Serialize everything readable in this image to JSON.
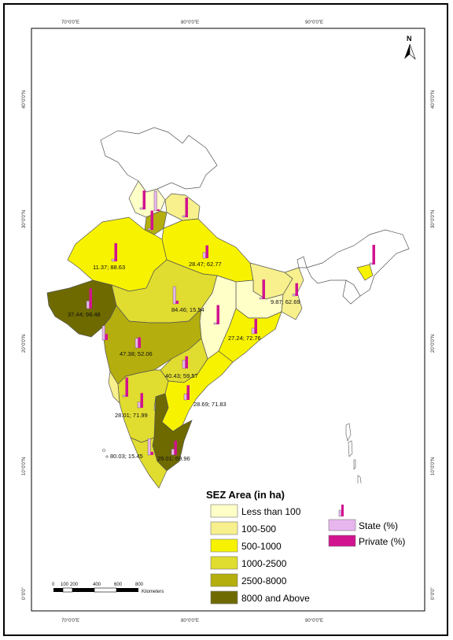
{
  "map": {
    "north_label": "N",
    "top_ticks": [
      "70°0'0\"E",
      "80°0'0\"E",
      "90°0'0\"E"
    ],
    "bottom_ticks": [
      "70°0'0\"E",
      "80°0'0\"E",
      "90°0'0\"E"
    ],
    "left_ticks": [
      "40°0'0\"N",
      "30°0'0\"N",
      "20°0'0\"N",
      "10°0'0\"N",
      "0°0'0\""
    ],
    "right_ticks": [
      "40°0'0\"N",
      "30°0'0\"N",
      "20°0'0\"N",
      "10°0'0\"N",
      "0°0'0\""
    ],
    "colors": {
      "less_than_100": "#ffffc8",
      "100_500": "#f7f08c",
      "500_1000": "#f7f200",
      "1000_2500": "#e0dc30",
      "2500_8000": "#b4ae0e",
      "8000_above": "#6e6a00",
      "none": "#ffffff",
      "state": "#e8b6ee",
      "private": "#d2138f"
    },
    "value_labels": [
      {
        "text": "11.37; 88.63",
        "state_pct": 11.37,
        "private_pct": 88.63
      },
      {
        "text": "28.47; 62.77",
        "state_pct": 28.47,
        "private_pct": 62.77
      },
      {
        "text": "37.44; 98.48",
        "state_pct": 37.44,
        "private_pct": 98.48
      },
      {
        "text": "84.46; 15.54",
        "state_pct": 84.46,
        "private_pct": 15.54
      },
      {
        "text": "9.87; 62.69",
        "state_pct": 9.87,
        "private_pct": 62.69
      },
      {
        "text": "27.24; 72.76",
        "state_pct": 27.24,
        "private_pct": 72.76
      },
      {
        "text": "47.38; 52.06",
        "state_pct": 47.38,
        "private_pct": 52.06
      },
      {
        "text": "40.43; 59.57",
        "state_pct": 40.43,
        "private_pct": 59.57
      },
      {
        "text": "28.01; 71.99",
        "state_pct": 28.01,
        "private_pct": 71.99
      },
      {
        "text": "28.69; 71.83",
        "state_pct": 28.69,
        "private_pct": 71.83
      },
      {
        "text": "80.03; 15.45",
        "state_pct": 80.03,
        "private_pct": 15.45
      },
      {
        "text": "29.01; 69.96",
        "state_pct": 29.01,
        "private_pct": 69.96
      }
    ]
  },
  "legend": {
    "title": "SEZ Area (in ha)",
    "classes": [
      {
        "label": "Less than 100",
        "color": "#ffffc8"
      },
      {
        "label": "100-500",
        "color": "#f7f08c"
      },
      {
        "label": "500-1000",
        "color": "#f7f200"
      },
      {
        "label": "1000-2500",
        "color": "#e0dc30"
      },
      {
        "label": "2500-8000",
        "color": "#b4ae0e"
      },
      {
        "label": "8000 and Above",
        "color": "#6e6a00"
      }
    ],
    "state_label": "State (%)",
    "private_label": "Private (%)"
  },
  "scale_bar": {
    "ticks": [
      "0",
      "100",
      "200",
      "400",
      "600",
      "800"
    ],
    "unit": "Kilometers"
  }
}
